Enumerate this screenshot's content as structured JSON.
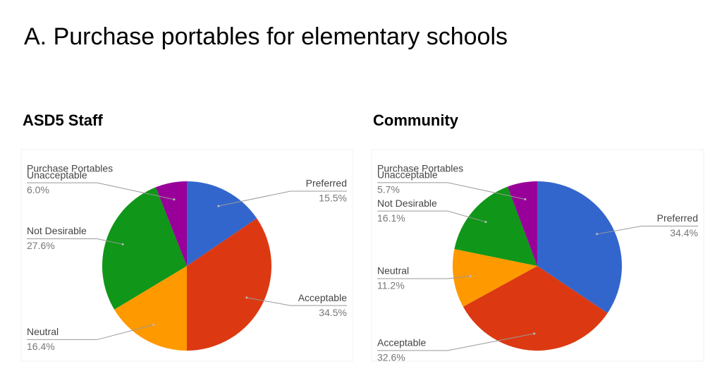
{
  "title": "A. Purchase portables for elementary schools",
  "chart_data": [
    {
      "type": "pie",
      "heading": "ASD5 Staff",
      "title": "Purchase Portables",
      "categories": [
        "Preferred",
        "Acceptable",
        "Neutral",
        "Not Desirable",
        "Unacceptable"
      ],
      "values": [
        15.5,
        34.5,
        16.4,
        27.6,
        6.0
      ],
      "value_labels": [
        "15.5%",
        "34.5%",
        "16.4%",
        "27.6%",
        "6.0%"
      ],
      "colors": [
        "#3366cc",
        "#dc3912",
        "#ff9900",
        "#109618",
        "#990099"
      ]
    },
    {
      "type": "pie",
      "heading": "Community",
      "title": "Purchase Portables",
      "categories": [
        "Preferred",
        "Acceptable",
        "Neutral",
        "Not Desirable",
        "Unacceptable"
      ],
      "values": [
        34.4,
        32.6,
        11.2,
        16.1,
        5.7
      ],
      "value_labels": [
        "34.4%",
        "32.6%",
        "11.2%",
        "16.1%",
        "5.7%"
      ],
      "colors": [
        "#3366cc",
        "#dc3912",
        "#ff9900",
        "#109618",
        "#990099"
      ]
    }
  ]
}
